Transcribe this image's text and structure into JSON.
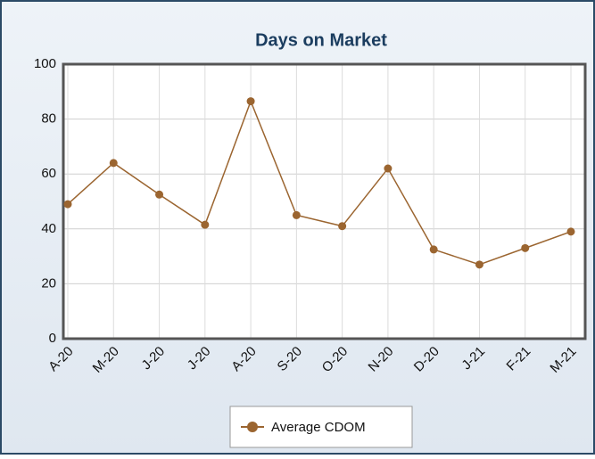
{
  "chart_data": {
    "type": "line",
    "title": "Days on Market",
    "categories": [
      "A-20",
      "M-20",
      "J-20",
      "J-20",
      "A-20",
      "S-20",
      "O-20",
      "N-20",
      "D-20",
      "J-21",
      "F-21",
      "M-21"
    ],
    "series": [
      {
        "name": "Average CDOM",
        "color": "#9b6530",
        "values": [
          49,
          64,
          52.5,
          41.5,
          86.5,
          45,
          41,
          62,
          32.5,
          27,
          33,
          39
        ]
      }
    ],
    "ylim": [
      0,
      100
    ],
    "yticks": [
      0,
      20,
      40,
      60,
      80,
      100
    ],
    "grid": true,
    "legend": "bottom"
  }
}
